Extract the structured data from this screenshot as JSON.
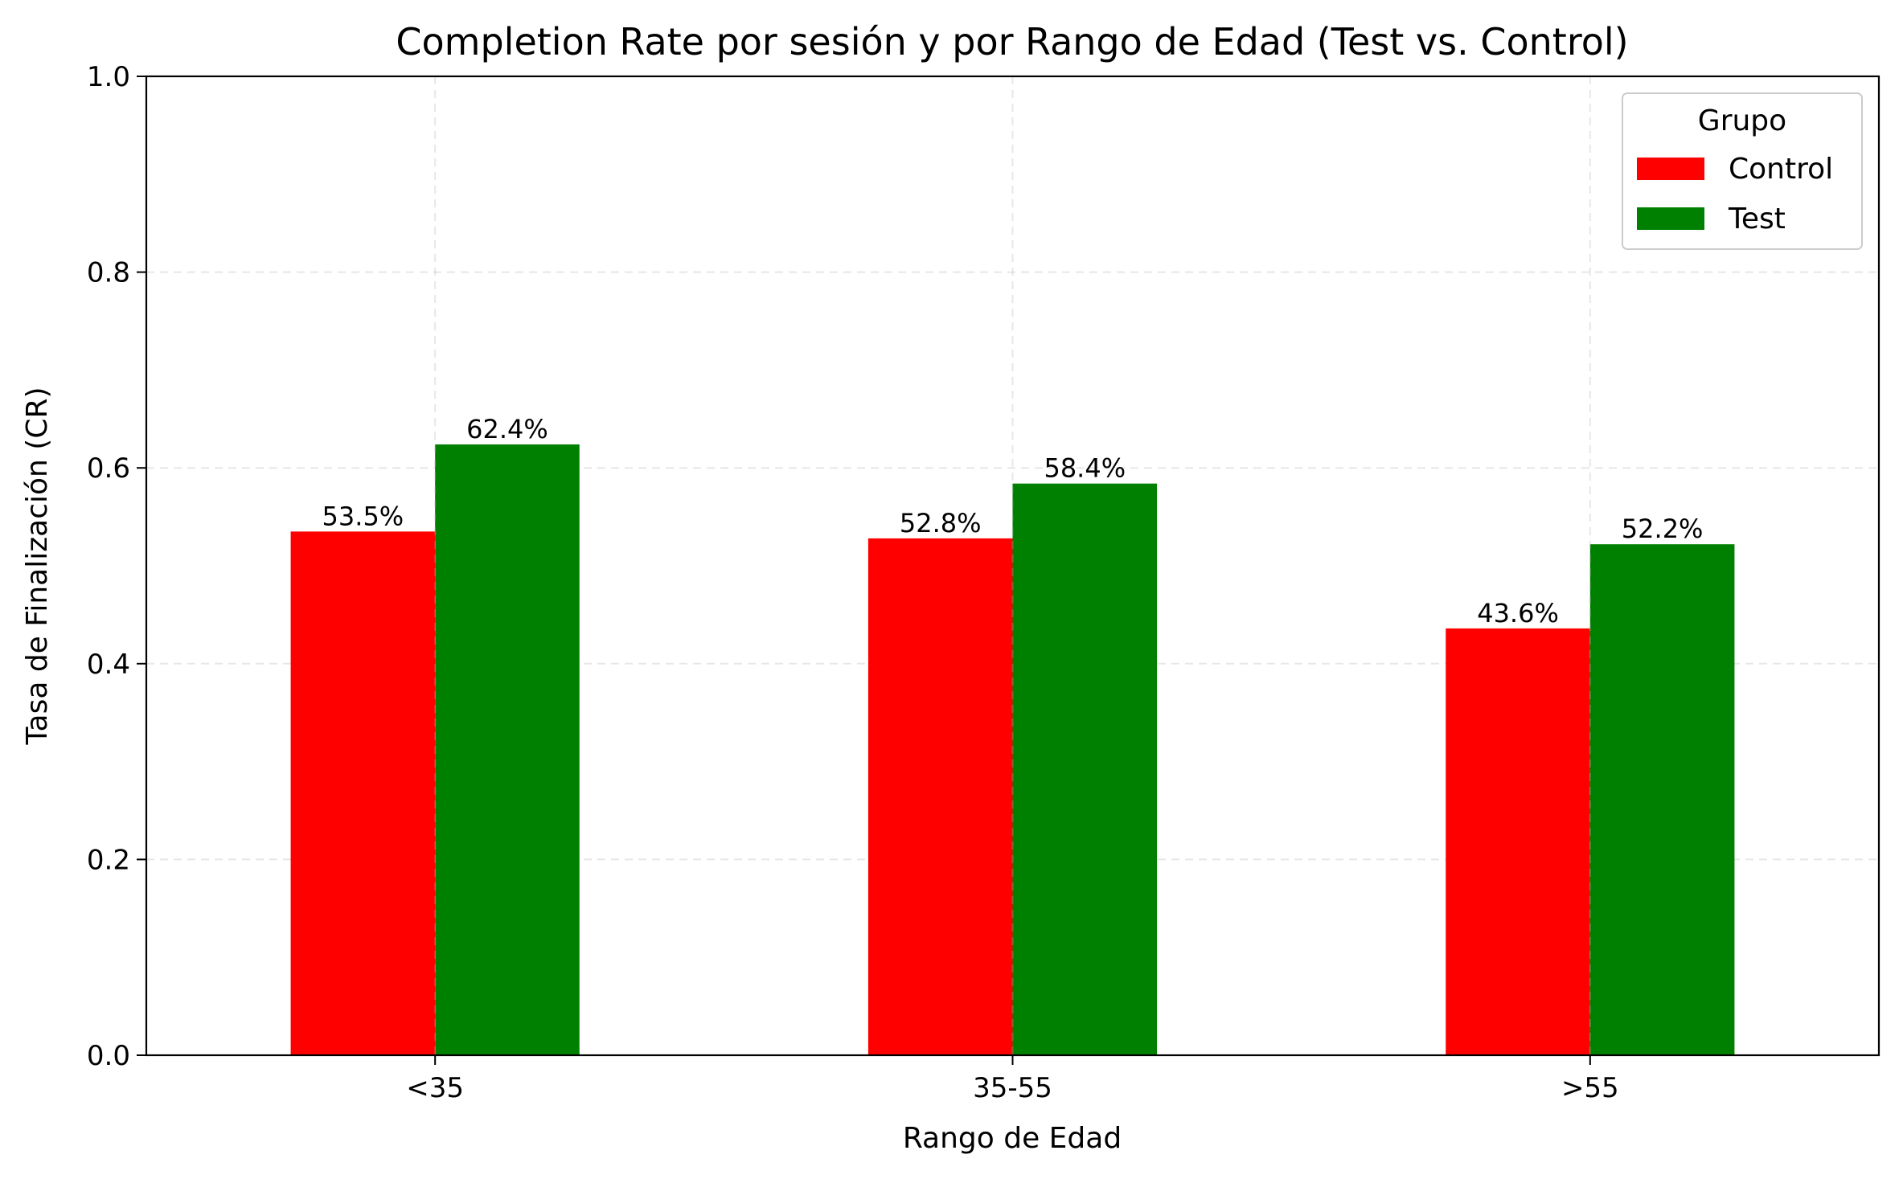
{
  "chart_data": {
    "type": "bar",
    "title": "Completion Rate por sesión y por Rango de Edad (Test vs. Control)",
    "xlabel": "Rango de Edad",
    "ylabel": "Tasa de Finalización (CR)",
    "categories": [
      "<35",
      "35-55",
      ">55"
    ],
    "series": [
      {
        "name": "Control",
        "color": "#ff0000",
        "values": [
          0.535,
          0.528,
          0.436
        ],
        "labels": [
          "53.5%",
          "52.8%",
          "43.6%"
        ]
      },
      {
        "name": "Test",
        "color": "#008000",
        "values": [
          0.624,
          0.584,
          0.522
        ],
        "labels": [
          "62.4%",
          "58.4%",
          "52.2%"
        ]
      }
    ],
    "ylim": [
      0,
      1.0
    ],
    "yticks": [
      0.0,
      0.2,
      0.4,
      0.6,
      0.8,
      1.0
    ],
    "ytick_labels": [
      "0.0",
      "0.2",
      "0.4",
      "0.6",
      "0.8",
      "1.0"
    ],
    "grid": true,
    "legend": {
      "title": "Grupo",
      "placement": "top-right"
    }
  }
}
